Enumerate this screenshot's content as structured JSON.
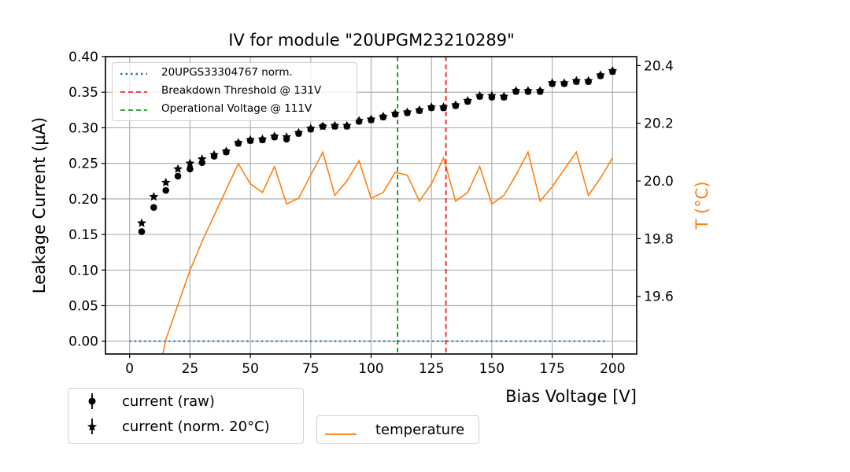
{
  "chart_data": {
    "type": "scatter",
    "title": "IV for module \"20UPGM23210289\"",
    "xlabel": "Bias Voltage [V]",
    "ylabel": "Leakage Current (µA)",
    "y2label": "T (°C)",
    "xlim": [
      -10,
      210
    ],
    "ylim": [
      -0.018,
      0.4
    ],
    "y2lim": [
      19.4,
      20.431
    ],
    "grid": true,
    "x_ticks": [
      0,
      25,
      50,
      75,
      100,
      125,
      150,
      175,
      200
    ],
    "x_tick_labels": [
      "0",
      "25",
      "50",
      "75",
      "100",
      "125",
      "150",
      "175",
      "200"
    ],
    "y_ticks": [
      0.0,
      0.05,
      0.1,
      0.15,
      0.2,
      0.25,
      0.3,
      0.35,
      0.4
    ],
    "y_tick_labels": [
      "0.00",
      "0.05",
      "0.10",
      "0.15",
      "0.20",
      "0.25",
      "0.30",
      "0.35",
      "0.40"
    ],
    "y2_ticks": [
      19.6,
      19.8,
      20.0,
      20.2,
      20.4
    ],
    "y2_tick_labels": [
      "19.6",
      "19.8",
      "20.0",
      "20.2",
      "20.4"
    ],
    "x": [
      5,
      10,
      15,
      20,
      25,
      30,
      35,
      40,
      45,
      50,
      55,
      60,
      65,
      70,
      75,
      80,
      85,
      90,
      95,
      100,
      105,
      110,
      115,
      120,
      125,
      130,
      135,
      140,
      145,
      150,
      155,
      160,
      165,
      170,
      175,
      180,
      185,
      190,
      195,
      200
    ],
    "series": [
      {
        "name": "current (raw)",
        "axis": "left",
        "marker": "circle",
        "color": "#000000",
        "values": [
          0.154,
          0.188,
          0.212,
          0.232,
          0.242,
          0.251,
          0.26,
          0.266,
          0.278,
          0.282,
          0.283,
          0.287,
          0.284,
          0.292,
          0.298,
          0.302,
          0.302,
          0.302,
          0.309,
          0.311,
          0.315,
          0.319,
          0.321,
          0.324,
          0.328,
          0.328,
          0.331,
          0.337,
          0.344,
          0.343,
          0.343,
          0.351,
          0.351,
          0.351,
          0.362,
          0.362,
          0.365,
          0.365,
          0.373,
          0.379
        ]
      },
      {
        "name": "current (norm. 20°C)",
        "axis": "left",
        "marker": "star",
        "color": "#000000",
        "values": [
          0.166,
          0.203,
          0.223,
          0.242,
          0.25,
          0.256,
          0.262,
          0.267,
          0.279,
          0.283,
          0.284,
          0.288,
          0.287,
          0.293,
          0.299,
          0.302,
          0.303,
          0.303,
          0.31,
          0.312,
          0.316,
          0.32,
          0.322,
          0.325,
          0.329,
          0.329,
          0.332,
          0.338,
          0.345,
          0.345,
          0.344,
          0.352,
          0.352,
          0.352,
          0.363,
          0.363,
          0.366,
          0.366,
          0.374,
          0.38
        ]
      },
      {
        "name": "temperature",
        "axis": "right",
        "marker": "line",
        "color": "#ff7f0e",
        "values": [
          19.1,
          19.25,
          19.45,
          19.57,
          19.69,
          19.79,
          19.88,
          19.97,
          20.06,
          19.99,
          19.96,
          20.05,
          19.92,
          19.94,
          20.02,
          20.1,
          19.95,
          20.0,
          20.07,
          19.94,
          19.96,
          20.03,
          20.02,
          19.93,
          19.99,
          20.08,
          19.93,
          19.96,
          20.05,
          19.92,
          19.95,
          20.02,
          20.1,
          19.93,
          19.98,
          20.04,
          20.1,
          19.95,
          20.01,
          20.08
        ]
      },
      {
        "name": "20UPGS33304767 norm.",
        "axis": "left",
        "marker": "dotted-line",
        "color": "#1f77b4",
        "values": [
          0,
          0,
          0,
          0,
          0,
          0,
          0,
          0,
          0,
          0,
          0,
          0,
          0,
          0,
          0,
          0,
          0,
          0,
          0,
          0,
          0,
          0,
          0,
          0,
          0,
          0,
          0,
          0,
          0,
          0,
          0,
          0,
          0,
          0,
          0,
          0,
          0,
          0,
          0,
          0
        ]
      }
    ],
    "vlines": [
      {
        "name": "Breakdown Threshold @ 131V",
        "x": 131,
        "color": "#ff0000",
        "style": "dashed"
      },
      {
        "name": "Operational Voltage @ 111V",
        "x": 111,
        "color": "#008000",
        "style": "dashed"
      }
    ],
    "legends": {
      "top": {
        "placement": "upper-left",
        "entries": [
          "20UPGS33304767 norm.",
          "Breakdown Threshold @ 131V",
          "Operational Voltage @ 111V"
        ]
      },
      "bottom_left": {
        "placement": "below-left",
        "entries": [
          "current (raw)",
          "current (norm. 20°C)"
        ]
      },
      "bottom_right": {
        "placement": "below-center",
        "entries": [
          "temperature"
        ]
      }
    },
    "colors": {
      "grid": "#b0b0b0",
      "temperature_axis_label": "#ff7f0e"
    }
  }
}
